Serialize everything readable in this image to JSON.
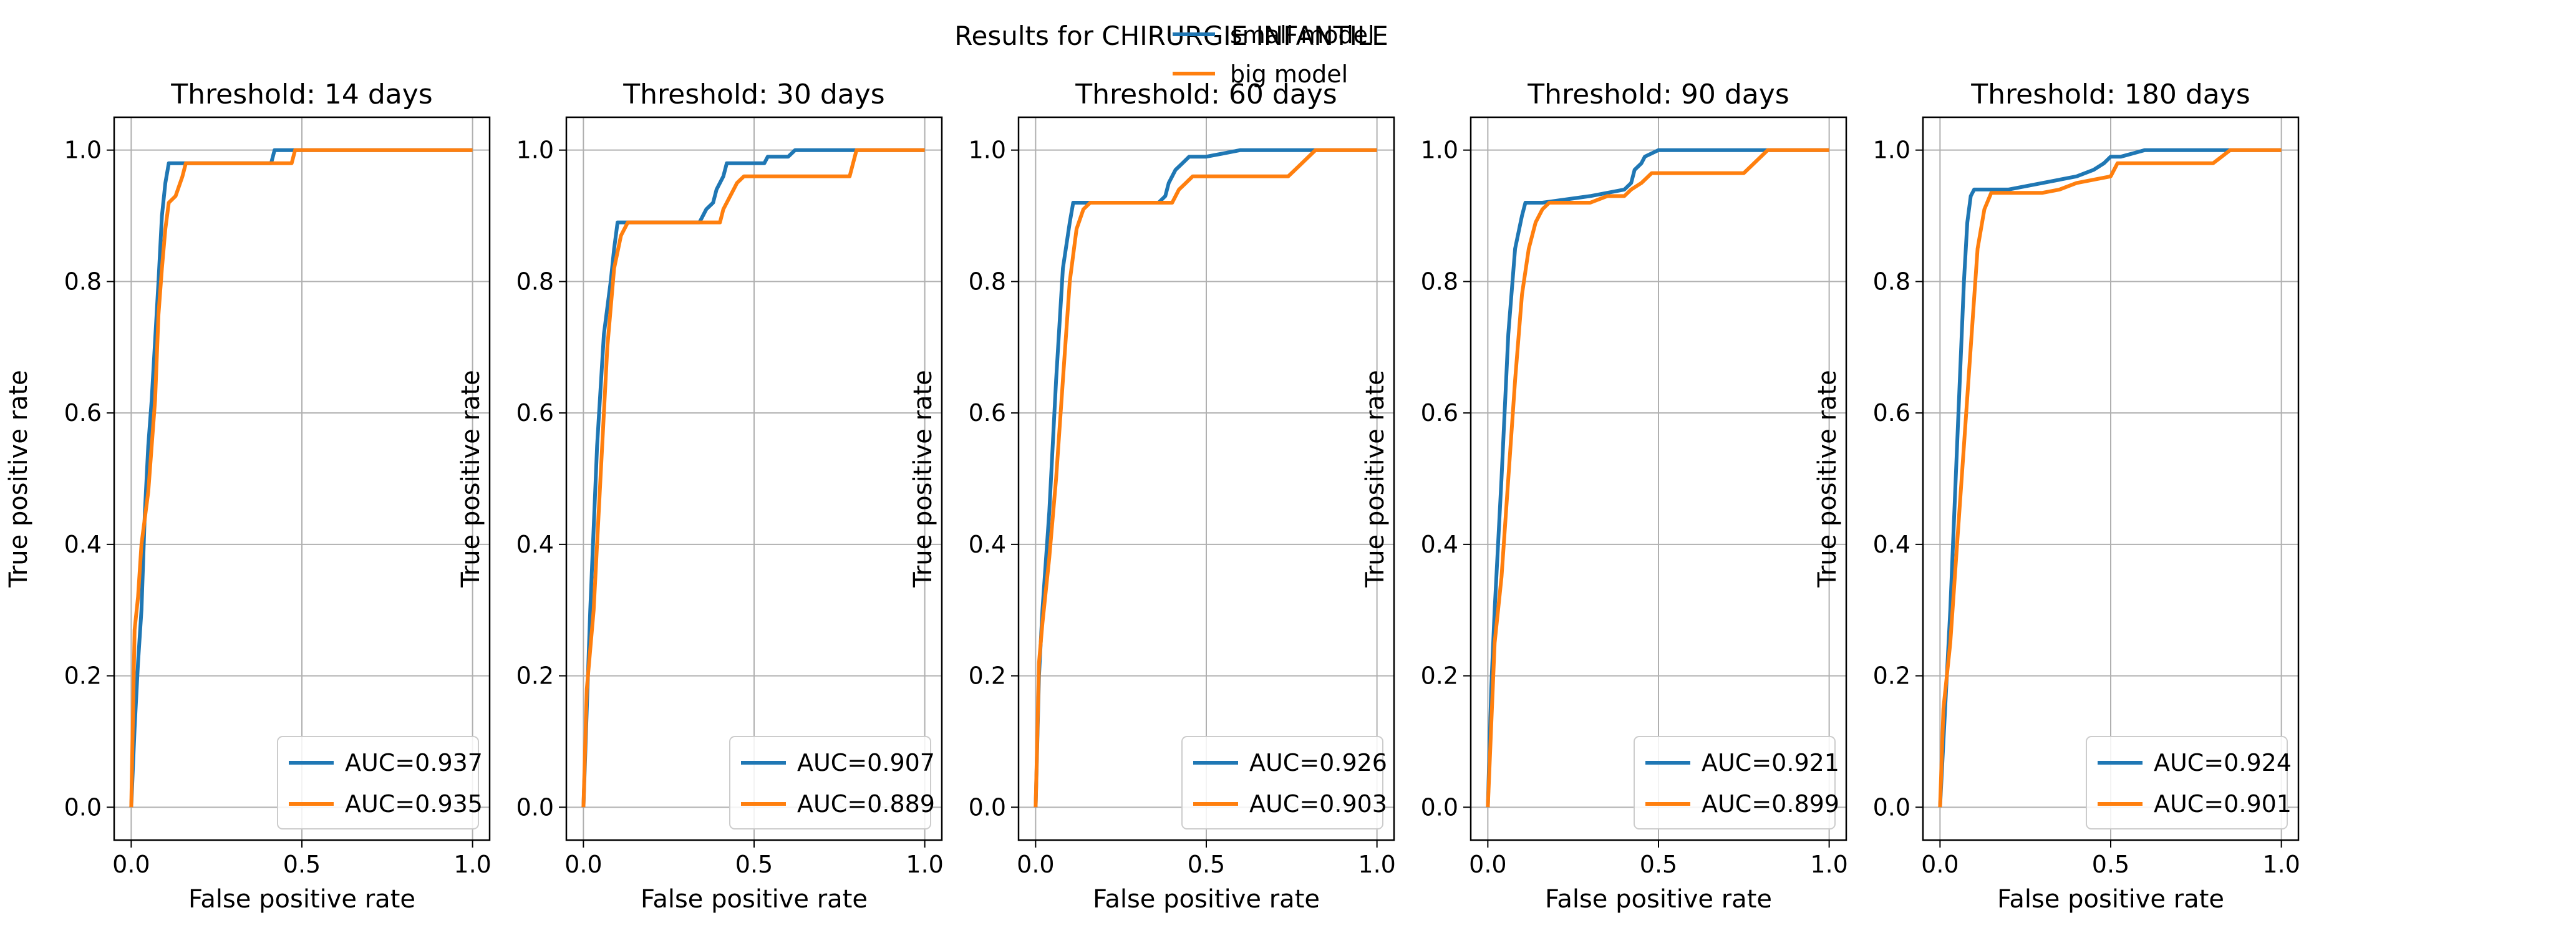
{
  "figure": {
    "suptitle": "Results for CHIRURGIE INFANTILE",
    "legend": {
      "placement": "top-right",
      "entries": [
        {
          "label": "small model",
          "color": "#1f77b4"
        },
        {
          "label": "big model",
          "color": "#ff7f0e"
        }
      ]
    }
  },
  "chart_data": [
    {
      "type": "line",
      "title": "Threshold: 14 days",
      "xlabel": "False positive rate",
      "ylabel": "True positive rate",
      "xlim": [
        -0.05,
        1.05
      ],
      "ylim": [
        -0.05,
        1.05
      ],
      "xticks": [
        "0.0",
        "0.5",
        "1.0"
      ],
      "yticks": [
        "0.0",
        "0.2",
        "0.4",
        "0.6",
        "0.8",
        "1.0"
      ],
      "grid": true,
      "legend_placement": "lower right",
      "series": [
        {
          "color": "#1f77b4",
          "legend": "AUC=0.937",
          "x": [
            0,
            0.01,
            0.02,
            0.03,
            0.04,
            0.05,
            0.06,
            0.08,
            0.09,
            0.1,
            0.11,
            0.12,
            0.41,
            0.42,
            0.46,
            1.0
          ],
          "y": [
            0,
            0.12,
            0.22,
            0.3,
            0.45,
            0.55,
            0.62,
            0.8,
            0.9,
            0.95,
            0.98,
            0.98,
            0.98,
            1.0,
            1.0,
            1.0
          ]
        },
        {
          "color": "#ff7f0e",
          "legend": "AUC=0.935",
          "x": [
            0,
            0.01,
            0.02,
            0.03,
            0.05,
            0.07,
            0.08,
            0.09,
            0.1,
            0.11,
            0.13,
            0.15,
            0.16,
            0.47,
            0.48,
            1.0
          ],
          "y": [
            0,
            0.27,
            0.32,
            0.4,
            0.48,
            0.62,
            0.75,
            0.82,
            0.88,
            0.92,
            0.93,
            0.96,
            0.98,
            0.98,
            1.0,
            1.0
          ]
        }
      ]
    },
    {
      "type": "line",
      "title": "Threshold: 30 days",
      "xlabel": "False positive rate",
      "ylabel": "True positive rate",
      "xlim": [
        -0.05,
        1.05
      ],
      "ylim": [
        -0.05,
        1.05
      ],
      "xticks": [
        "0.0",
        "0.5",
        "1.0"
      ],
      "yticks": [
        "0.0",
        "0.2",
        "0.4",
        "0.6",
        "0.8",
        "1.0"
      ],
      "grid": true,
      "legend_placement": "lower right",
      "series": [
        {
          "color": "#1f77b4",
          "legend": "AUC=0.907",
          "x": [
            0,
            0.01,
            0.02,
            0.04,
            0.06,
            0.08,
            0.09,
            0.1,
            0.11,
            0.34,
            0.36,
            0.38,
            0.39,
            0.41,
            0.42,
            0.47,
            0.53,
            0.54,
            0.6,
            0.62,
            0.8,
            1.0
          ],
          "y": [
            0,
            0.15,
            0.3,
            0.55,
            0.72,
            0.8,
            0.85,
            0.89,
            0.89,
            0.89,
            0.91,
            0.92,
            0.94,
            0.96,
            0.98,
            0.98,
            0.98,
            0.99,
            0.99,
            1.0,
            1.0,
            1.0
          ]
        },
        {
          "color": "#ff7f0e",
          "legend": "AUC=0.889",
          "x": [
            0,
            0.01,
            0.03,
            0.05,
            0.07,
            0.09,
            0.11,
            0.13,
            0.4,
            0.41,
            0.43,
            0.44,
            0.45,
            0.47,
            0.78,
            0.8,
            1.0
          ],
          "y": [
            0,
            0.18,
            0.3,
            0.5,
            0.7,
            0.82,
            0.87,
            0.89,
            0.89,
            0.91,
            0.93,
            0.94,
            0.95,
            0.96,
            0.96,
            1.0,
            1.0
          ]
        }
      ]
    },
    {
      "type": "line",
      "title": "Threshold: 60 days",
      "xlabel": "False positive rate",
      "ylabel": "True positive rate",
      "xlim": [
        -0.05,
        1.05
      ],
      "ylim": [
        -0.05,
        1.05
      ],
      "xticks": [
        "0.0",
        "0.5",
        "1.0"
      ],
      "yticks": [
        "0.0",
        "0.2",
        "0.4",
        "0.6",
        "0.8",
        "1.0"
      ],
      "grid": true,
      "legend_placement": "lower right",
      "series": [
        {
          "color": "#1f77b4",
          "legend": "AUC=0.926",
          "x": [
            0,
            0.01,
            0.02,
            0.04,
            0.06,
            0.08,
            0.1,
            0.11,
            0.12,
            0.16,
            0.36,
            0.38,
            0.39,
            0.41,
            0.43,
            0.45,
            0.5,
            0.55,
            0.6,
            0.8,
            1.0
          ],
          "y": [
            0,
            0.2,
            0.3,
            0.45,
            0.65,
            0.82,
            0.89,
            0.92,
            0.92,
            0.92,
            0.92,
            0.93,
            0.95,
            0.97,
            0.98,
            0.99,
            0.99,
            0.995,
            1.0,
            1.0,
            1.0
          ]
        },
        {
          "color": "#ff7f0e",
          "legend": "AUC=0.903",
          "x": [
            0,
            0.01,
            0.02,
            0.04,
            0.06,
            0.08,
            0.1,
            0.12,
            0.14,
            0.16,
            0.4,
            0.42,
            0.44,
            0.46,
            0.74,
            0.76,
            0.8,
            0.82,
            1.0
          ],
          "y": [
            0,
            0.22,
            0.28,
            0.38,
            0.5,
            0.65,
            0.8,
            0.88,
            0.91,
            0.92,
            0.92,
            0.94,
            0.95,
            0.96,
            0.96,
            0.97,
            0.99,
            1.0,
            1.0
          ]
        }
      ]
    },
    {
      "type": "line",
      "title": "Threshold: 90 days",
      "xlabel": "False positive rate",
      "ylabel": "True positive rate",
      "xlim": [
        -0.05,
        1.05
      ],
      "ylim": [
        -0.05,
        1.05
      ],
      "xticks": [
        "0.0",
        "0.5",
        "1.0"
      ],
      "yticks": [
        "0.0",
        "0.2",
        "0.4",
        "0.6",
        "0.8",
        "1.0"
      ],
      "grid": true,
      "legend_placement": "lower right",
      "series": [
        {
          "color": "#1f77b4",
          "legend": "AUC=0.921",
          "x": [
            0,
            0.01,
            0.02,
            0.04,
            0.06,
            0.08,
            0.1,
            0.11,
            0.12,
            0.16,
            0.3,
            0.4,
            0.42,
            0.43,
            0.45,
            0.46,
            0.5,
            0.6,
            0.7,
            1.0
          ],
          "y": [
            0,
            0.18,
            0.3,
            0.5,
            0.72,
            0.85,
            0.9,
            0.92,
            0.92,
            0.92,
            0.93,
            0.94,
            0.95,
            0.97,
            0.98,
            0.99,
            1.0,
            1.0,
            1.0,
            1.0
          ]
        },
        {
          "color": "#ff7f0e",
          "legend": "AUC=0.899",
          "x": [
            0,
            0.02,
            0.04,
            0.06,
            0.08,
            0.1,
            0.12,
            0.14,
            0.16,
            0.18,
            0.3,
            0.35,
            0.4,
            0.42,
            0.45,
            0.48,
            0.75,
            0.8,
            0.82,
            1.0
          ],
          "y": [
            0,
            0.25,
            0.35,
            0.5,
            0.65,
            0.78,
            0.85,
            0.89,
            0.91,
            0.92,
            0.92,
            0.93,
            0.93,
            0.94,
            0.95,
            0.965,
            0.965,
            0.99,
            1.0,
            1.0
          ]
        }
      ]
    },
    {
      "type": "line",
      "title": "Threshold: 180 days",
      "xlabel": "False positive rate",
      "ylabel": "True positive rate",
      "xlim": [
        -0.05,
        1.05
      ],
      "ylim": [
        -0.05,
        1.05
      ],
      "xticks": [
        "0.0",
        "0.5",
        "1.0"
      ],
      "yticks": [
        "0.0",
        "0.2",
        "0.4",
        "0.6",
        "0.8",
        "1.0"
      ],
      "grid": true,
      "legend_placement": "lower right",
      "series": [
        {
          "color": "#1f77b4",
          "legend": "AUC=0.924",
          "x": [
            0,
            0.01,
            0.02,
            0.03,
            0.05,
            0.07,
            0.08,
            0.09,
            0.1,
            0.2,
            0.3,
            0.4,
            0.45,
            0.48,
            0.5,
            0.53,
            0.6,
            0.8,
            1.0
          ],
          "y": [
            0,
            0.1,
            0.2,
            0.3,
            0.55,
            0.8,
            0.89,
            0.93,
            0.94,
            0.94,
            0.95,
            0.96,
            0.97,
            0.98,
            0.99,
            0.99,
            1.0,
            1.0,
            1.0
          ]
        },
        {
          "color": "#ff7f0e",
          "legend": "AUC=0.901",
          "x": [
            0,
            0.01,
            0.03,
            0.05,
            0.07,
            0.09,
            0.11,
            0.13,
            0.15,
            0.3,
            0.35,
            0.4,
            0.5,
            0.52,
            0.8,
            0.85,
            1.0
          ],
          "y": [
            0,
            0.15,
            0.25,
            0.4,
            0.55,
            0.7,
            0.85,
            0.91,
            0.935,
            0.935,
            0.94,
            0.95,
            0.96,
            0.98,
            0.98,
            1.0,
            1.0
          ]
        }
      ]
    }
  ]
}
